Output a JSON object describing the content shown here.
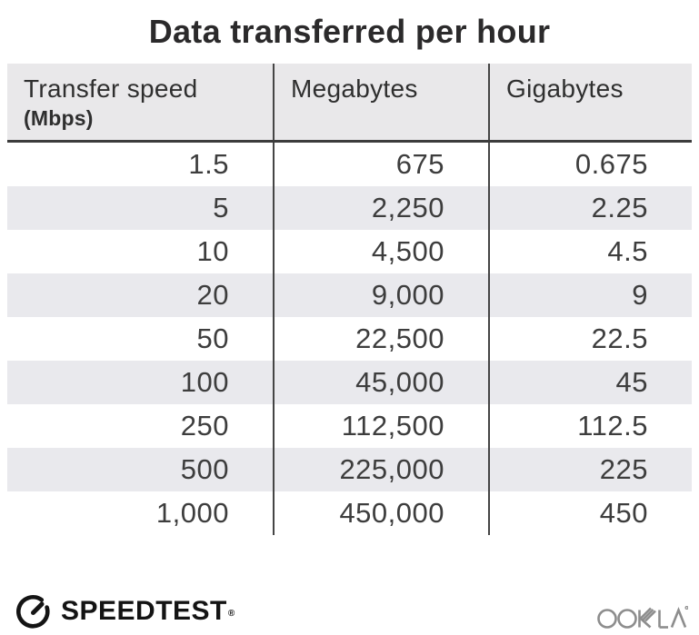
{
  "title": "Data transferred per hour",
  "table": {
    "columns": [
      {
        "label": "Transfer speed",
        "sublabel": "(Mbps)"
      },
      {
        "label": "Megabytes"
      },
      {
        "label": "Gigabytes"
      }
    ],
    "rows": [
      [
        "1.5",
        "675",
        "0.675"
      ],
      [
        "5",
        "2,250",
        "2.25"
      ],
      [
        "10",
        "4,500",
        "4.5"
      ],
      [
        "20",
        "9,000",
        "9"
      ],
      [
        "50",
        "22,500",
        "22.5"
      ],
      [
        "100",
        "45,000",
        "45"
      ],
      [
        "250",
        "112,500",
        "112.5"
      ],
      [
        "500",
        "225,000",
        "225"
      ],
      [
        "1,000",
        "450,000",
        "450"
      ]
    ]
  },
  "chart_data": {
    "type": "table",
    "title": "Data transferred per hour",
    "columns": [
      "Transfer speed (Mbps)",
      "Megabytes",
      "Gigabytes"
    ],
    "rows": [
      [
        1.5,
        675,
        0.675
      ],
      [
        5,
        2250,
        2.25
      ],
      [
        10,
        4500,
        4.5
      ],
      [
        20,
        9000,
        9
      ],
      [
        50,
        22500,
        22.5
      ],
      [
        100,
        45000,
        45
      ],
      [
        250,
        112500,
        112.5
      ],
      [
        500,
        225000,
        225
      ],
      [
        1000,
        450000,
        450
      ]
    ],
    "layout": {
      "striped_rows": "even rows shaded",
      "column_dividers": true,
      "values_right_aligned": true
    }
  },
  "footer": {
    "speedtest_label": "SPEEDTEST",
    "speedtest_trademark": "®",
    "ookla_label": "OOKLA"
  },
  "colors": {
    "header_bg": "#e9e8ea",
    "stripe_bg": "#e9e9ed",
    "divider": "#454545",
    "header_underline": "#3c3c3c",
    "number_text": "#3d3d3d",
    "title_text": "#2b2a2b",
    "ookla_gray": "#8d8d8d",
    "speedtest_black": "#141414"
  }
}
